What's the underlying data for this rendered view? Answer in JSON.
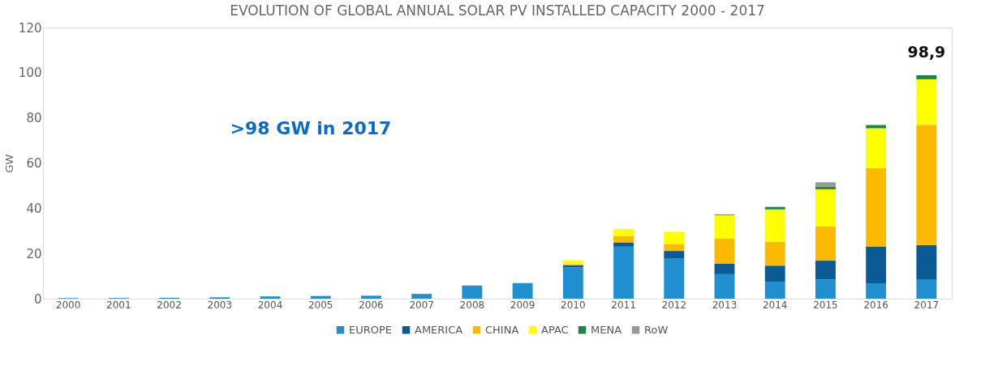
{
  "chart_data": {
    "type": "bar",
    "title": "EVOLUTION OF GLOBAL ANNUAL SOLAR PV INSTALLED CAPACITY 2000 - 2017",
    "ylabel": "GW",
    "categories": [
      "2000",
      "2001",
      "2002",
      "2003",
      "2004",
      "2005",
      "2006",
      "2007",
      "2008",
      "2009",
      "2010",
      "2011",
      "2012",
      "2013",
      "2014",
      "2015",
      "2016",
      "2017"
    ],
    "stacked": true,
    "ylim": [
      0,
      120
    ],
    "yticks": [
      0,
      20,
      40,
      60,
      80,
      100,
      120
    ],
    "grid": false,
    "legend": "bottom",
    "series": [
      {
        "name": "EUROPE",
        "color": "#1f8fcf",
        "values": [
          0.3,
          0.3,
          0.4,
          0.6,
          1.0,
          1.2,
          1.3,
          2.1,
          5.5,
          6.8,
          13.8,
          23,
          17.7,
          10.8,
          7.5,
          8.5,
          6.8,
          8.3
        ]
      },
      {
        "name": "AMERICA",
        "color": "#0a5a96",
        "values": [
          0,
          0,
          0,
          0,
          0,
          0,
          0,
          0,
          0.3,
          0,
          1.0,
          1.9,
          3.4,
          4.6,
          7.1,
          8.3,
          16.3,
          15.4
        ]
      },
      {
        "name": "CHINA",
        "color": "#fbb900",
        "values": [
          0,
          0,
          0,
          0,
          0,
          0,
          0,
          0,
          0,
          0,
          0.5,
          2.8,
          3.1,
          11.1,
          10.6,
          15.1,
          34.6,
          53.2
        ]
      },
      {
        "name": "APAC",
        "color": "#ffff00",
        "values": [
          0,
          0,
          0,
          0,
          0,
          0,
          0,
          0,
          0,
          0.4,
          1.5,
          3.1,
          5.4,
          10.5,
          14.3,
          16.5,
          17.7,
          20.2
        ]
      },
      {
        "name": "MENA",
        "color": "#17874a",
        "values": [
          0,
          0,
          0,
          0,
          0,
          0,
          0,
          0,
          0,
          0,
          0,
          0,
          0,
          0.3,
          1.1,
          1.1,
          1.4,
          1.8
        ]
      },
      {
        "name": "RoW",
        "color": "#999999",
        "values": [
          0,
          0,
          0,
          0,
          0,
          0,
          0,
          0,
          0,
          0,
          0,
          0,
          0,
          0,
          0,
          2.0,
          0,
          0
        ]
      }
    ],
    "totals": [
      null,
      null,
      null,
      null,
      null,
      null,
      null,
      null,
      null,
      null,
      null,
      null,
      null,
      null,
      null,
      null,
      null,
      "98,9"
    ],
    "annotations": [
      ">98 GW in 2017"
    ]
  }
}
